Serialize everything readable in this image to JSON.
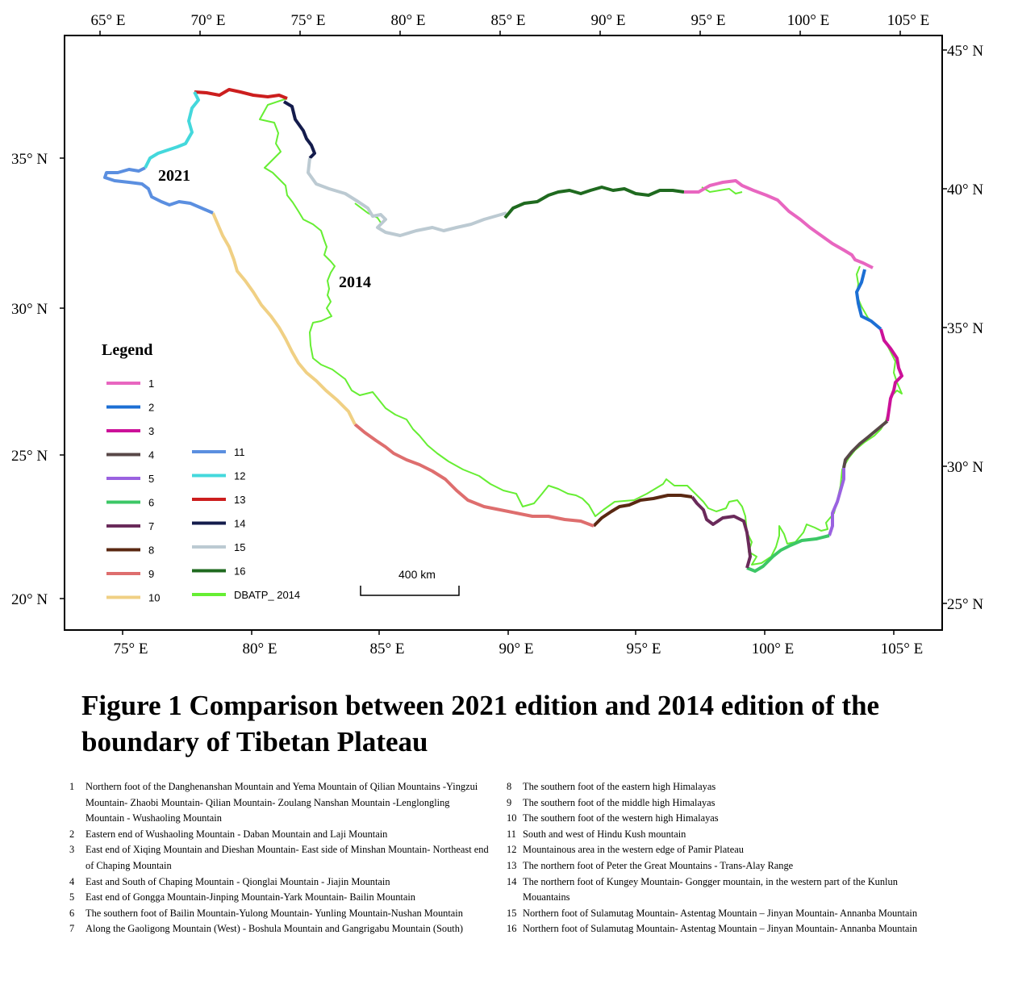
{
  "map": {
    "top_lon_ticks": [
      "65° E",
      "70° E",
      "75° E",
      "80° E",
      "85° E",
      "90° E",
      "95° E",
      "100° E",
      "105° E"
    ],
    "bottom_lon_ticks": [
      "75° E",
      "80° E",
      "85° E",
      "90° E",
      "95° E",
      "100° E",
      "105° E"
    ],
    "left_lat_ticks": [
      "35° N",
      "30° N",
      "25° N",
      "20° N"
    ],
    "right_lat_ticks": [
      "45° N",
      "40° N",
      "35° N",
      "30° N",
      "25° N"
    ],
    "label_2021": "2021",
    "label_2014": "2014",
    "scale_label": "400 km"
  },
  "legend": {
    "title": "Legend",
    "items": [
      {
        "label": "1",
        "color": "#e866c0"
      },
      {
        "label": "2",
        "color": "#1c6fd4"
      },
      {
        "label": "3",
        "color": "#cc1199"
      },
      {
        "label": "4",
        "color": "#584848"
      },
      {
        "label": "5",
        "color": "#9a62e0"
      },
      {
        "label": "6",
        "color": "#3cc766"
      },
      {
        "label": "7",
        "color": "#6a2a5a"
      },
      {
        "label": "8",
        "color": "#5a2812"
      },
      {
        "label": "9",
        "color": "#de6e6e"
      },
      {
        "label": "10",
        "color": "#f0d084"
      },
      {
        "label": "11",
        "color": "#5b8fe0"
      },
      {
        "label": "12",
        "color": "#44d8dc"
      },
      {
        "label": "13",
        "color": "#cc1e1e"
      },
      {
        "label": "14",
        "color": "#141c4c"
      },
      {
        "label": "15",
        "color": "#bccad2"
      },
      {
        "label": "16",
        "color": "#1f6a1f"
      },
      {
        "label": "DBATP_ 2014",
        "color": "#66ee33"
      }
    ]
  },
  "caption": "Figure 1  Comparison between 2021 edition and 2014 edition of the boundary of Tibetan Plateau",
  "notes_left": [
    {
      "num": "1",
      "text": "Northern foot of the Danghenanshan Mountain and Yema Mountain of Qilian Mountains -Yingzui Mountain- Zhaobi Mountain- Qilian Mountain- Zoulang Nanshan Mountain -Lenglongling Mountain - Wushaoling Mountain"
    },
    {
      "num": "2",
      "text": "Eastern end of   Wushaoling Mountain - Daban Mountain and Laji Mountain"
    },
    {
      "num": "3",
      "text": "East end of Xiqing Mountain and Dieshan Mountain- East side of Minshan Mountain- Northeast end of Chaping Mountain"
    },
    {
      "num": "4",
      "text": "East and South of Chaping Mountain - Qionglai  Mountain - Jiajin Mountain"
    },
    {
      "num": "5",
      "text": "East end of Gongga Mountain-Jinping Mountain-Yark Mountain- Bailin Mountain"
    },
    {
      "num": "6",
      "text": "The southern foot of Bailin Mountain-Yulong Mountain- Yunling Mountain-Nushan Mountain"
    },
    {
      "num": "7",
      "text": "Along the Gaoligong Mountain (West) - Boshula Mountain and Gangrigabu Mountain (South)"
    }
  ],
  "notes_right": [
    {
      "num": "8",
      "text": "The southern foot of the eastern high Himalayas"
    },
    {
      "num": "9",
      "text": "The southern foot of the middle high Himalayas"
    },
    {
      "num": "10",
      "text": "The southern foot of the western high Himalayas"
    },
    {
      "num": "11",
      "text": "South and west of Hindu Kush mountain"
    },
    {
      "num": "12",
      "text": "Mountainous area in the western edge of Pamir Plateau"
    },
    {
      "num": "13",
      "text": "The northern foot of Peter the Great Mountains - Trans-Alay Range"
    },
    {
      "num": "14",
      "text": "The northern foot of Kungey Mountain- Gongger mountain, in the western part of the Kunlun Mouantains"
    },
    {
      "num": "15",
      "text": "Northern foot of Sulamutag Mountain- Astentag Mountain – Jinyan Mountain- Annanba Mountain"
    },
    {
      "num": "16",
      "text": "Northern foot of Sulamutag Mountain- Astentag Mountain – Jinyan Mountain- Annanba Mountain"
    }
  ]
}
